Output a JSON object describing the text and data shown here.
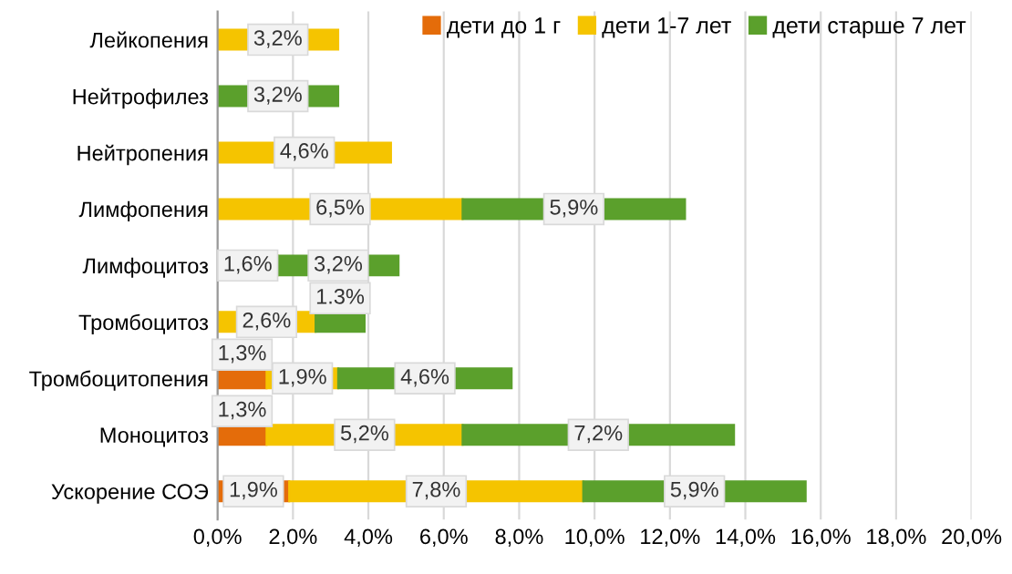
{
  "chart_data": {
    "type": "bar",
    "orientation": "horizontal",
    "stacked": true,
    "categories": [
      "Лейкопения",
      "Нейтрофилез",
      "Нейтропения",
      "Лимфопения",
      "Лимфоцитоз",
      "Тромбоцитоз",
      "Тромбоцитопения",
      "Моноцитоз",
      "Ускорение СОЭ"
    ],
    "series": [
      {
        "name": "дети до 1 г",
        "color": "#e46c0a",
        "values": [
          null,
          null,
          null,
          null,
          null,
          null,
          1.3,
          1.3,
          1.9
        ],
        "value_labels": [
          null,
          null,
          null,
          null,
          null,
          null,
          "1,3%",
          "1,3%",
          "1,9%"
        ]
      },
      {
        "name": "дети 1-7 лет",
        "color": "#f5c400",
        "values": [
          3.2,
          null,
          4.6,
          6.5,
          1.6,
          2.6,
          1.9,
          5.2,
          7.8
        ],
        "value_labels": [
          "3,2%",
          null,
          "4,6%",
          "6,5%",
          "1,6%",
          "2,6%",
          "1,9%",
          "5,2%",
          "7,8%"
        ]
      },
      {
        "name": "дети старше 7 лет",
        "color": "#5ba02c",
        "values": [
          null,
          3.2,
          null,
          5.9,
          3.2,
          1.3,
          4.6,
          7.2,
          5.9
        ],
        "value_labels": [
          null,
          "3,2%",
          null,
          "5,9%",
          "3,2%",
          "1.3%",
          "4,6%",
          "7,2%",
          "5,9%"
        ]
      }
    ],
    "xlim": [
      0,
      20
    ],
    "xticks": [
      {
        "value": 0,
        "label": "0,0%"
      },
      {
        "value": 2,
        "label": "2,0%"
      },
      {
        "value": 4,
        "label": "4,0%"
      },
      {
        "value": 6,
        "label": "6,0%"
      },
      {
        "value": 8,
        "label": "8,0%"
      },
      {
        "value": 10,
        "label": "10,0%"
      },
      {
        "value": 12,
        "label": "12,0%"
      },
      {
        "value": 14,
        "label": "14,0%"
      },
      {
        "value": 16,
        "label": "16,0%"
      },
      {
        "value": 18,
        "label": "18,0%"
      },
      {
        "value": 20,
        "label": "20,0%"
      }
    ],
    "grid": "x",
    "legend": "top right"
  }
}
